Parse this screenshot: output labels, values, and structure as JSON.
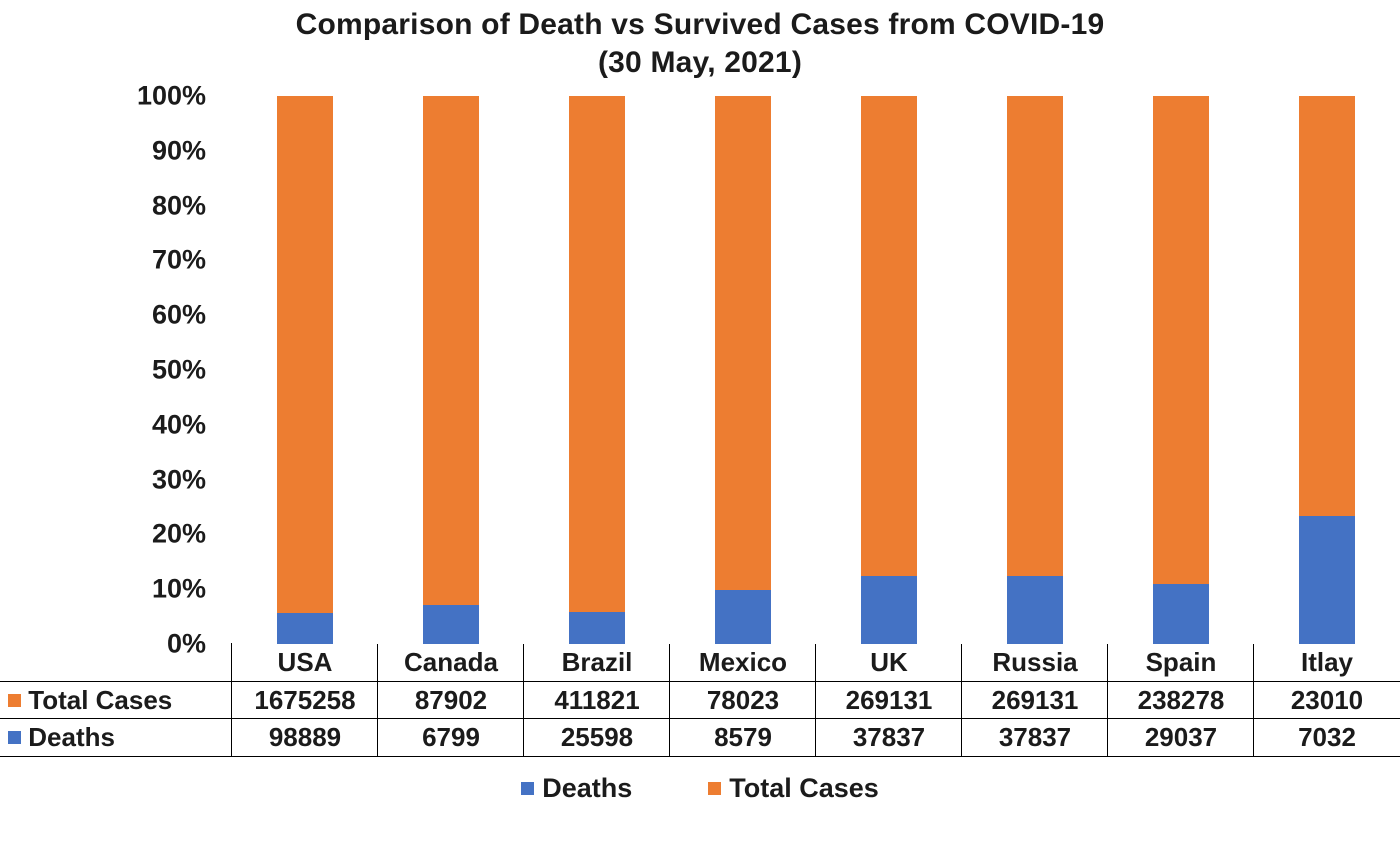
{
  "title": {
    "line1": "Comparison of Death vs Survived Cases from COVID-19",
    "line2": "(30 May, 2021)"
  },
  "colors": {
    "deaths": "#4472C4",
    "total_cases": "#ED7D31",
    "text": "#1b1b1b",
    "border": "#000000"
  },
  "chart_data": {
    "type": "bar",
    "subtype": "100-percent-stacked-column",
    "title": "Comparison of Death vs Survived Cases from COVID-19 (30 May, 2021)",
    "categories": [
      "USA",
      "Canada",
      "Brazil",
      "Mexico",
      "UK",
      "Russia",
      "Spain",
      "Itlay"
    ],
    "series": [
      {
        "name": "Deaths",
        "color": "#4472C4",
        "values": [
          98889,
          6799,
          25598,
          8579,
          37837,
          37837,
          29037,
          7032
        ]
      },
      {
        "name": "Total Cases",
        "color": "#ED7D31",
        "values": [
          1675258,
          87902,
          411821,
          78023,
          269131,
          269131,
          238278,
          23010
        ]
      }
    ],
    "deaths_percent_of_stack": [
      5.57,
      7.18,
      5.85,
      9.91,
      12.33,
      12.33,
      10.86,
      23.41
    ],
    "xlabel": "",
    "ylabel": "",
    "ylim": [
      0,
      100
    ],
    "y_ticks": [
      "0%",
      "10%",
      "20%",
      "30%",
      "40%",
      "50%",
      "60%",
      "70%",
      "80%",
      "90%",
      "100%"
    ],
    "grid": false,
    "legend_position": "bottom",
    "legend": [
      "Deaths",
      "Total Cases"
    ],
    "data_table": {
      "shown": true,
      "row_order": [
        "Total Cases",
        "Deaths"
      ]
    }
  }
}
